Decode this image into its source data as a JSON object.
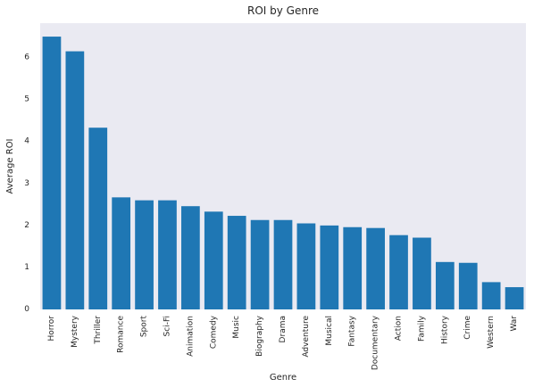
{
  "chart_data": {
    "type": "bar",
    "title": "ROI by Genre",
    "xlabel": "Genre",
    "ylabel": "Average ROI",
    "categories": [
      "Horror",
      "Mystery",
      "Thriller",
      "Romance",
      "Sport",
      "Sci-Fi",
      "Animation",
      "Comedy",
      "Music",
      "Biography",
      "Drama",
      "Adventure",
      "Musical",
      "Fantasy",
      "Documentary",
      "Action",
      "Family",
      "History",
      "Crime",
      "Western",
      "War"
    ],
    "values": [
      6.5,
      6.15,
      4.33,
      2.67,
      2.6,
      2.6,
      2.46,
      2.33,
      2.23,
      2.13,
      2.13,
      2.05,
      2.0,
      1.96,
      1.94,
      1.77,
      1.71,
      1.13,
      1.11,
      0.65,
      0.53
    ],
    "yticks": [
      0,
      1,
      2,
      3,
      4,
      5,
      6
    ],
    "ylim": [
      0,
      6.82
    ],
    "grid": false,
    "colors": {
      "bar": "#1f77b4",
      "plot_background": "#eaeaf2",
      "page_background": "#ffffff"
    }
  }
}
